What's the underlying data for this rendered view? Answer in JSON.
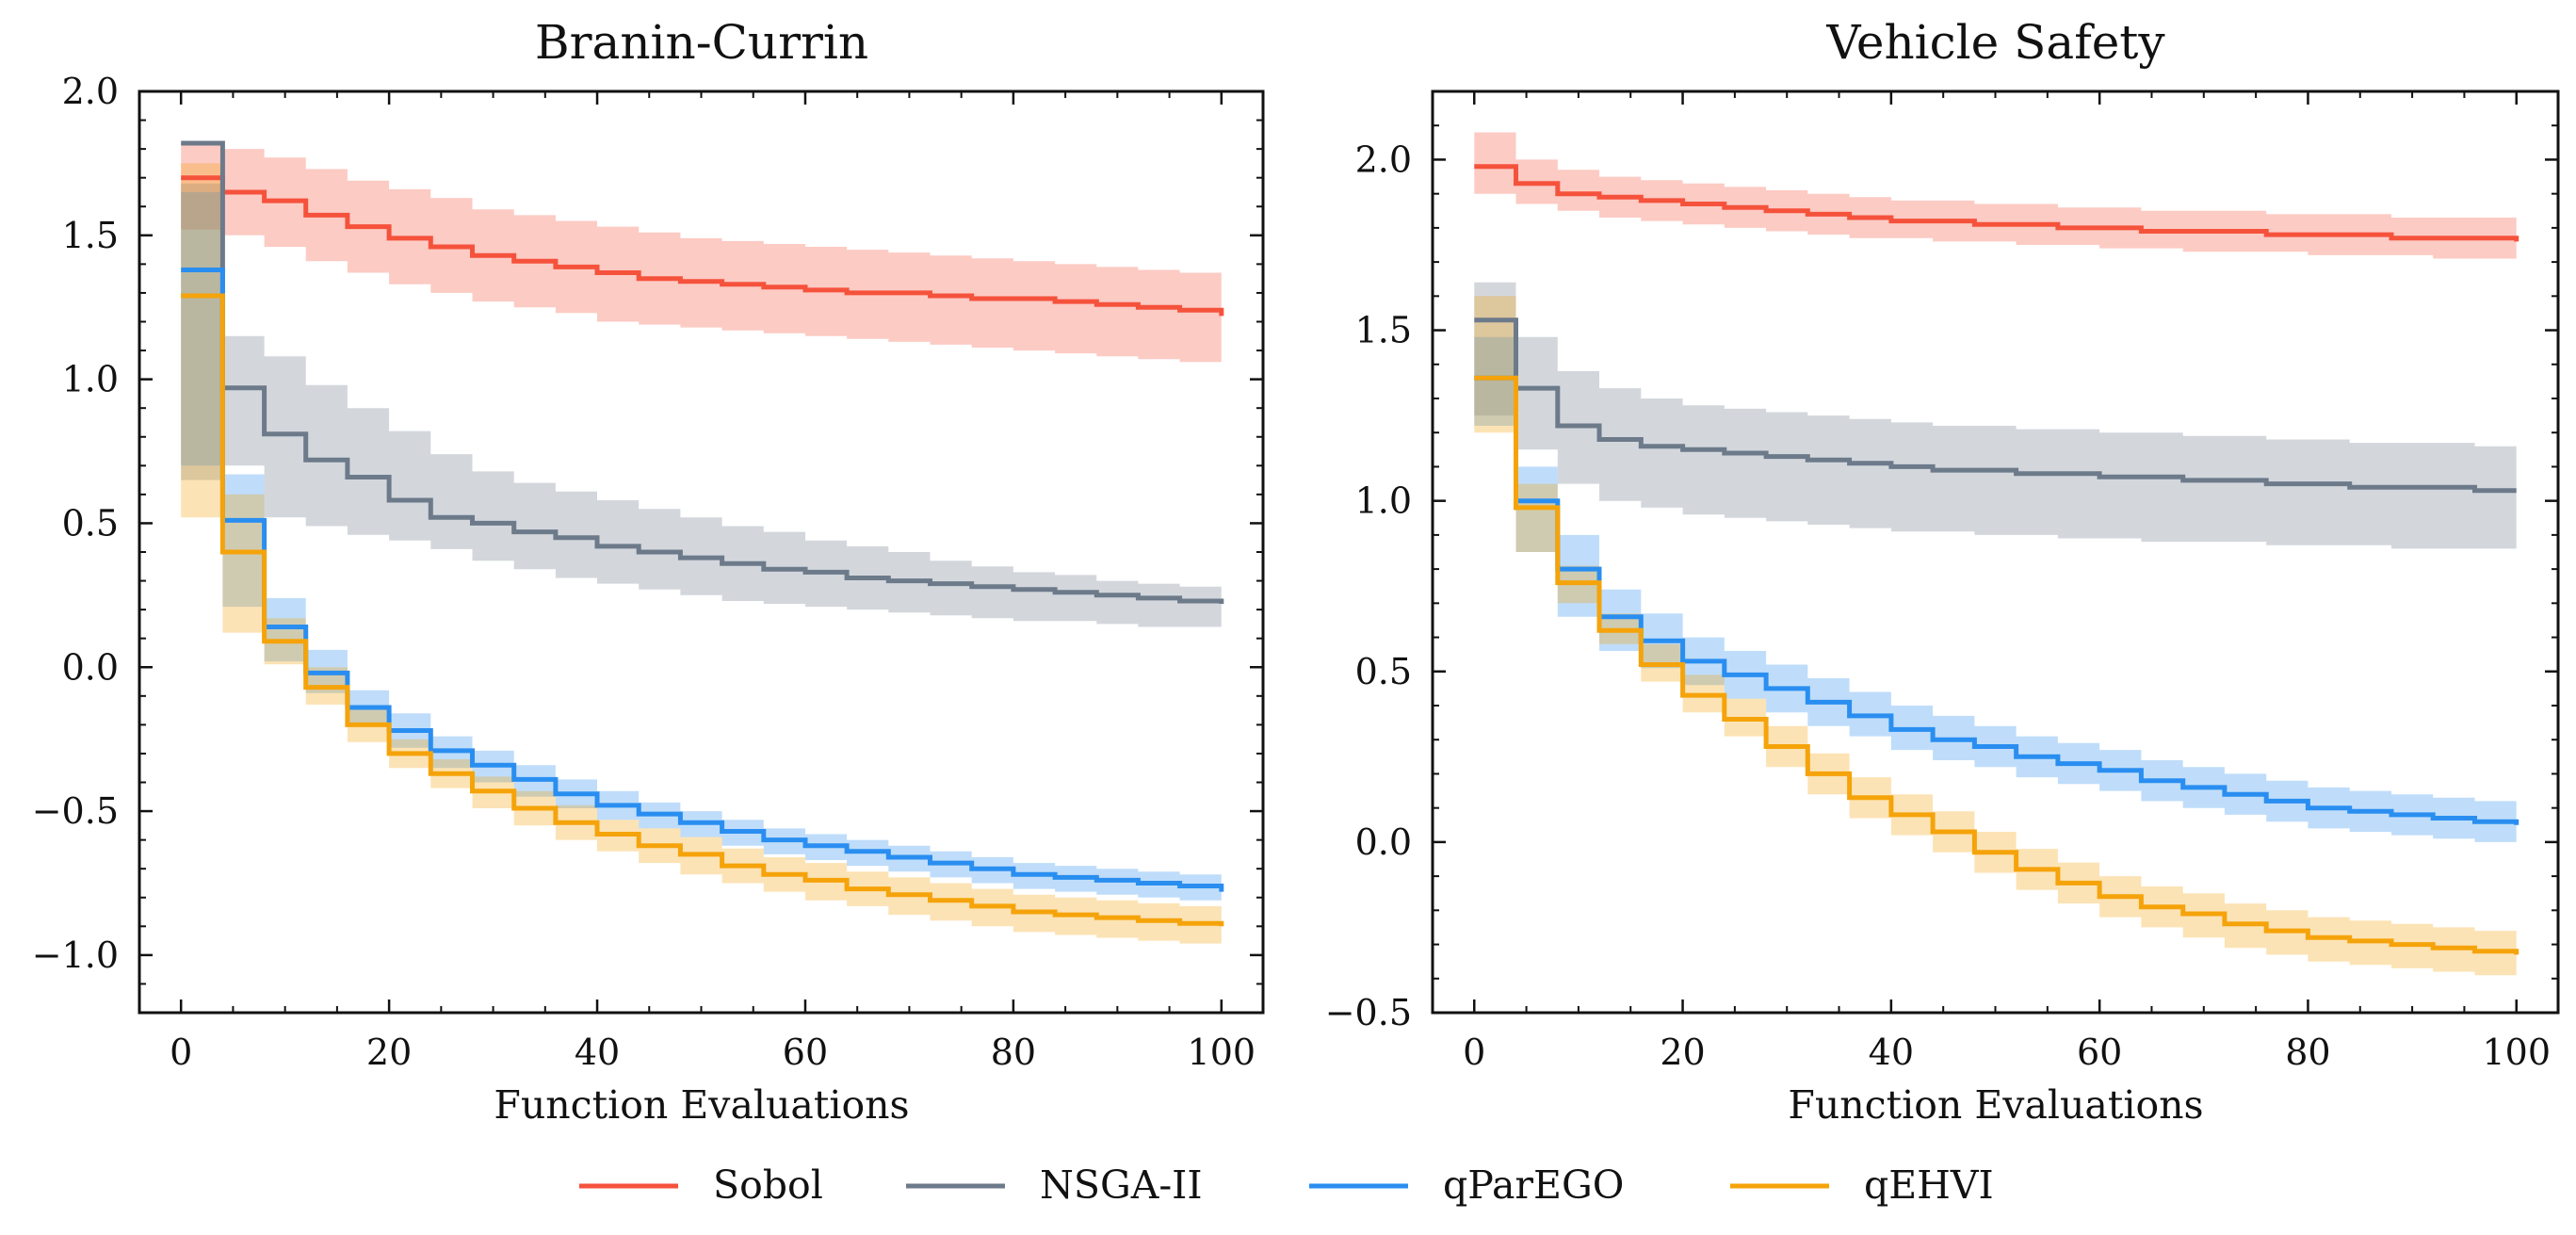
{
  "figure": {
    "legend": {
      "placement": "bottom-center",
      "entries": [
        {
          "name": "Sobol",
          "color": "#f5523c"
        },
        {
          "name": "NSGA-II",
          "color": "#6c7a8a"
        },
        {
          "name": "qParEGO",
          "color": "#2a8ef0"
        },
        {
          "name": "qEHVI",
          "color": "#f5a30a"
        }
      ]
    }
  },
  "chart_data": [
    {
      "type": "line",
      "step": true,
      "title": "Branin-Currin",
      "xlabel": "Function Evaluations",
      "ylabel": "",
      "xlim": [
        -4,
        104
      ],
      "ylim": [
        -1.2,
        2.0
      ],
      "xticks": [
        0,
        20,
        40,
        60,
        80,
        100
      ],
      "xtick_labels": [
        "0",
        "20",
        "40",
        "60",
        "80",
        "100"
      ],
      "yticks": [
        -1.0,
        -0.5,
        0.0,
        0.5,
        1.0,
        1.5,
        2.0
      ],
      "ytick_labels": [
        "−1.0",
        "−0.5",
        "0.0",
        "0.5",
        "1.0",
        "1.5",
        "2.0"
      ],
      "x": [
        0,
        4,
        8,
        12,
        16,
        20,
        24,
        28,
        32,
        36,
        40,
        44,
        48,
        52,
        56,
        60,
        64,
        68,
        72,
        76,
        80,
        84,
        88,
        92,
        96,
        100
      ],
      "series": [
        {
          "name": "Sobol",
          "color": "#f5523c",
          "mean": [
            1.7,
            1.65,
            1.62,
            1.57,
            1.53,
            1.49,
            1.46,
            1.43,
            1.41,
            1.39,
            1.37,
            1.35,
            1.34,
            1.33,
            1.32,
            1.31,
            1.3,
            1.3,
            1.29,
            1.28,
            1.28,
            1.27,
            1.26,
            1.25,
            1.24,
            1.22
          ],
          "lower": [
            1.52,
            1.5,
            1.46,
            1.41,
            1.37,
            1.33,
            1.3,
            1.27,
            1.25,
            1.23,
            1.2,
            1.19,
            1.18,
            1.17,
            1.16,
            1.15,
            1.14,
            1.13,
            1.12,
            1.11,
            1.1,
            1.09,
            1.08,
            1.07,
            1.06,
            1.05
          ],
          "upper": [
            1.82,
            1.8,
            1.77,
            1.73,
            1.69,
            1.66,
            1.63,
            1.59,
            1.57,
            1.55,
            1.53,
            1.51,
            1.49,
            1.48,
            1.47,
            1.46,
            1.45,
            1.44,
            1.43,
            1.42,
            1.41,
            1.4,
            1.39,
            1.38,
            1.37,
            1.35
          ]
        },
        {
          "name": "NSGA-II",
          "color": "#6c7a8a",
          "mean": [
            1.82,
            0.97,
            0.81,
            0.72,
            0.66,
            0.58,
            0.52,
            0.5,
            0.47,
            0.45,
            0.42,
            0.4,
            0.38,
            0.36,
            0.34,
            0.33,
            0.31,
            0.3,
            0.29,
            0.28,
            0.27,
            0.26,
            0.25,
            0.24,
            0.23,
            0.22
          ],
          "lower": [
            0.65,
            0.7,
            0.52,
            0.49,
            0.46,
            0.44,
            0.41,
            0.37,
            0.34,
            0.31,
            0.29,
            0.27,
            0.25,
            0.23,
            0.22,
            0.21,
            0.2,
            0.19,
            0.18,
            0.17,
            0.16,
            0.16,
            0.15,
            0.14,
            0.14,
            0.13
          ],
          "upper": [
            1.68,
            1.15,
            1.08,
            0.98,
            0.9,
            0.82,
            0.74,
            0.68,
            0.64,
            0.61,
            0.58,
            0.55,
            0.52,
            0.49,
            0.47,
            0.44,
            0.42,
            0.4,
            0.37,
            0.35,
            0.33,
            0.32,
            0.3,
            0.29,
            0.28,
            0.27
          ]
        },
        {
          "name": "qParEGO",
          "color": "#2a8ef0",
          "mean": [
            1.38,
            0.51,
            0.14,
            -0.02,
            -0.14,
            -0.22,
            -0.29,
            -0.34,
            -0.39,
            -0.44,
            -0.48,
            -0.51,
            -0.54,
            -0.57,
            -0.6,
            -0.62,
            -0.64,
            -0.66,
            -0.68,
            -0.7,
            -0.72,
            -0.73,
            -0.74,
            -0.75,
            -0.76,
            -0.78
          ],
          "lower": [
            0.7,
            0.21,
            0.02,
            -0.09,
            -0.2,
            -0.28,
            -0.35,
            -0.4,
            -0.45,
            -0.49,
            -0.53,
            -0.56,
            -0.59,
            -0.62,
            -0.65,
            -0.67,
            -0.69,
            -0.71,
            -0.73,
            -0.75,
            -0.77,
            -0.78,
            -0.79,
            -0.8,
            -0.81,
            -0.82
          ],
          "upper": [
            1.65,
            0.67,
            0.24,
            0.06,
            -0.08,
            -0.16,
            -0.24,
            -0.29,
            -0.34,
            -0.39,
            -0.43,
            -0.47,
            -0.5,
            -0.53,
            -0.56,
            -0.58,
            -0.6,
            -0.62,
            -0.64,
            -0.66,
            -0.68,
            -0.69,
            -0.7,
            -0.71,
            -0.72,
            -0.74
          ]
        },
        {
          "name": "qEHVI",
          "color": "#f5a30a",
          "mean": [
            1.29,
            0.4,
            0.09,
            -0.07,
            -0.2,
            -0.3,
            -0.37,
            -0.43,
            -0.49,
            -0.54,
            -0.58,
            -0.62,
            -0.65,
            -0.69,
            -0.72,
            -0.74,
            -0.77,
            -0.79,
            -0.81,
            -0.83,
            -0.85,
            -0.86,
            -0.87,
            -0.88,
            -0.89,
            -0.9
          ],
          "lower": [
            0.52,
            0.12,
            0.01,
            -0.13,
            -0.26,
            -0.35,
            -0.42,
            -0.49,
            -0.55,
            -0.6,
            -0.64,
            -0.68,
            -0.72,
            -0.75,
            -0.78,
            -0.81,
            -0.83,
            -0.86,
            -0.88,
            -0.9,
            -0.92,
            -0.93,
            -0.94,
            -0.95,
            -0.96,
            -0.97
          ],
          "upper": [
            1.75,
            0.6,
            0.17,
            0.0,
            -0.14,
            -0.25,
            -0.32,
            -0.38,
            -0.43,
            -0.48,
            -0.53,
            -0.56,
            -0.59,
            -0.63,
            -0.66,
            -0.68,
            -0.71,
            -0.73,
            -0.75,
            -0.77,
            -0.79,
            -0.8,
            -0.81,
            -0.82,
            -0.83,
            -0.84
          ]
        }
      ]
    },
    {
      "type": "line",
      "step": true,
      "title": "Vehicle Safety",
      "xlabel": "Function Evaluations",
      "ylabel": "",
      "xlim": [
        -4,
        104
      ],
      "ylim": [
        -0.5,
        2.2
      ],
      "xticks": [
        0,
        20,
        40,
        60,
        80,
        100
      ],
      "xtick_labels": [
        "0",
        "20",
        "40",
        "60",
        "80",
        "100"
      ],
      "yticks": [
        -0.5,
        0.0,
        0.5,
        1.0,
        1.5,
        2.0
      ],
      "ytick_labels": [
        "−0.5",
        "0.0",
        "0.5",
        "1.0",
        "1.5",
        "2.0"
      ],
      "x": [
        0,
        4,
        8,
        12,
        16,
        20,
        24,
        28,
        32,
        36,
        40,
        44,
        48,
        52,
        56,
        60,
        64,
        68,
        72,
        76,
        80,
        84,
        88,
        92,
        96,
        100
      ],
      "series": [
        {
          "name": "Sobol",
          "color": "#f5523c",
          "mean": [
            1.98,
            1.93,
            1.9,
            1.89,
            1.88,
            1.87,
            1.86,
            1.85,
            1.84,
            1.83,
            1.82,
            1.82,
            1.81,
            1.81,
            1.8,
            1.8,
            1.79,
            1.79,
            1.79,
            1.78,
            1.78,
            1.78,
            1.77,
            1.77,
            1.77,
            1.76
          ],
          "lower": [
            1.9,
            1.87,
            1.85,
            1.83,
            1.82,
            1.81,
            1.8,
            1.79,
            1.78,
            1.77,
            1.77,
            1.76,
            1.76,
            1.75,
            1.75,
            1.74,
            1.74,
            1.73,
            1.73,
            1.73,
            1.72,
            1.72,
            1.72,
            1.71,
            1.71,
            1.71
          ],
          "upper": [
            2.08,
            2.0,
            1.97,
            1.95,
            1.94,
            1.93,
            1.92,
            1.91,
            1.9,
            1.89,
            1.88,
            1.88,
            1.87,
            1.87,
            1.86,
            1.86,
            1.85,
            1.85,
            1.85,
            1.84,
            1.84,
            1.84,
            1.83,
            1.83,
            1.83,
            1.82
          ]
        },
        {
          "name": "NSGA-II",
          "color": "#6c7a8a",
          "mean": [
            1.53,
            1.33,
            1.22,
            1.18,
            1.16,
            1.15,
            1.14,
            1.13,
            1.12,
            1.11,
            1.1,
            1.09,
            1.09,
            1.08,
            1.08,
            1.07,
            1.07,
            1.06,
            1.06,
            1.05,
            1.05,
            1.04,
            1.04,
            1.04,
            1.03,
            1.03
          ],
          "lower": [
            1.25,
            1.15,
            1.05,
            1.0,
            0.98,
            0.96,
            0.95,
            0.94,
            0.93,
            0.92,
            0.91,
            0.91,
            0.9,
            0.9,
            0.89,
            0.89,
            0.88,
            0.88,
            0.88,
            0.87,
            0.87,
            0.87,
            0.86,
            0.86,
            0.86,
            0.86
          ],
          "upper": [
            1.64,
            1.48,
            1.38,
            1.33,
            1.3,
            1.28,
            1.27,
            1.26,
            1.25,
            1.24,
            1.23,
            1.22,
            1.22,
            1.21,
            1.21,
            1.2,
            1.2,
            1.19,
            1.19,
            1.18,
            1.18,
            1.17,
            1.17,
            1.17,
            1.16,
            1.16
          ]
        },
        {
          "name": "qParEGO",
          "color": "#2a8ef0",
          "mean": [
            1.36,
            1.0,
            0.8,
            0.66,
            0.59,
            0.53,
            0.49,
            0.45,
            0.41,
            0.37,
            0.33,
            0.3,
            0.28,
            0.25,
            0.23,
            0.21,
            0.18,
            0.16,
            0.14,
            0.12,
            0.1,
            0.09,
            0.08,
            0.07,
            0.06,
            0.05
          ],
          "lower": [
            1.22,
            0.85,
            0.66,
            0.56,
            0.51,
            0.46,
            0.42,
            0.38,
            0.34,
            0.31,
            0.27,
            0.24,
            0.22,
            0.19,
            0.17,
            0.15,
            0.12,
            0.1,
            0.08,
            0.06,
            0.04,
            0.03,
            0.02,
            0.01,
            0.0,
            0.0
          ],
          "upper": [
            1.48,
            1.1,
            0.9,
            0.74,
            0.67,
            0.6,
            0.56,
            0.52,
            0.48,
            0.44,
            0.4,
            0.37,
            0.34,
            0.31,
            0.29,
            0.27,
            0.24,
            0.22,
            0.2,
            0.18,
            0.16,
            0.15,
            0.14,
            0.13,
            0.12,
            0.11
          ]
        },
        {
          "name": "qEHVI",
          "color": "#f5a30a",
          "mean": [
            1.36,
            0.98,
            0.76,
            0.62,
            0.52,
            0.43,
            0.36,
            0.28,
            0.2,
            0.13,
            0.08,
            0.03,
            -0.03,
            -0.08,
            -0.12,
            -0.16,
            -0.19,
            -0.21,
            -0.24,
            -0.26,
            -0.28,
            -0.29,
            -0.3,
            -0.31,
            -0.32,
            -0.33
          ],
          "lower": [
            1.2,
            0.85,
            0.7,
            0.58,
            0.47,
            0.38,
            0.31,
            0.22,
            0.14,
            0.07,
            0.02,
            -0.03,
            -0.09,
            -0.14,
            -0.18,
            -0.22,
            -0.25,
            -0.28,
            -0.31,
            -0.33,
            -0.35,
            -0.36,
            -0.37,
            -0.38,
            -0.39,
            -0.4
          ],
          "upper": [
            1.6,
            1.05,
            0.81,
            0.67,
            0.58,
            0.49,
            0.42,
            0.34,
            0.26,
            0.19,
            0.14,
            0.09,
            0.03,
            -0.02,
            -0.06,
            -0.1,
            -0.13,
            -0.15,
            -0.18,
            -0.2,
            -0.22,
            -0.23,
            -0.24,
            -0.25,
            -0.26,
            -0.27
          ]
        }
      ]
    }
  ]
}
